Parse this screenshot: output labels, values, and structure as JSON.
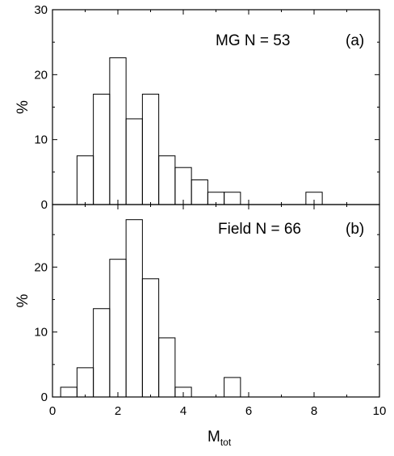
{
  "chart_data": [
    {
      "type": "histogram",
      "panel_tag": "(a)",
      "sample_label": "MG  N = 53",
      "xlabel_main": "M",
      "xlabel_sub": "tot",
      "ylabel": "%",
      "xlim": [
        0,
        10
      ],
      "ylim": [
        0,
        30
      ],
      "xticks": [
        "0",
        "2",
        "4",
        "6",
        "8",
        "10"
      ],
      "yticks": [
        "0",
        "10",
        "20",
        "30"
      ],
      "bin_width": 0.5,
      "bins": [
        {
          "x0": 0.75,
          "x1": 1.25,
          "value": 7.5
        },
        {
          "x0": 1.25,
          "x1": 1.75,
          "value": 17.0
        },
        {
          "x0": 1.75,
          "x1": 2.25,
          "value": 22.6
        },
        {
          "x0": 2.25,
          "x1": 2.75,
          "value": 13.2
        },
        {
          "x0": 2.75,
          "x1": 3.25,
          "value": 17.0
        },
        {
          "x0": 3.25,
          "x1": 3.75,
          "value": 7.5
        },
        {
          "x0": 3.75,
          "x1": 4.25,
          "value": 5.7
        },
        {
          "x0": 4.25,
          "x1": 4.75,
          "value": 3.8
        },
        {
          "x0": 4.75,
          "x1": 5.25,
          "value": 1.9
        },
        {
          "x0": 5.25,
          "x1": 5.75,
          "value": 1.9
        },
        {
          "x0": 7.75,
          "x1": 8.25,
          "value": 1.9
        }
      ]
    },
    {
      "type": "histogram",
      "panel_tag": "(b)",
      "sample_label": "Field  N = 66",
      "xlabel_main": "M",
      "xlabel_sub": "tot",
      "ylabel": "%",
      "xlim": [
        0,
        10
      ],
      "ylim": [
        0,
        30
      ],
      "xticks": [
        "0",
        "2",
        "4",
        "6",
        "8",
        "10"
      ],
      "yticks": [
        "0",
        "10",
        "20"
      ],
      "bin_width": 0.5,
      "bins": [
        {
          "x0": 0.25,
          "x1": 0.75,
          "value": 1.5
        },
        {
          "x0": 0.75,
          "x1": 1.25,
          "value": 4.5
        },
        {
          "x0": 1.25,
          "x1": 1.75,
          "value": 13.6
        },
        {
          "x0": 1.75,
          "x1": 2.25,
          "value": 21.2
        },
        {
          "x0": 2.25,
          "x1": 2.75,
          "value": 27.3
        },
        {
          "x0": 2.75,
          "x1": 3.25,
          "value": 18.2
        },
        {
          "x0": 3.25,
          "x1": 3.75,
          "value": 9.1
        },
        {
          "x0": 3.75,
          "x1": 4.25,
          "value": 1.5
        },
        {
          "x0": 5.25,
          "x1": 5.75,
          "value": 3.0
        }
      ]
    }
  ]
}
